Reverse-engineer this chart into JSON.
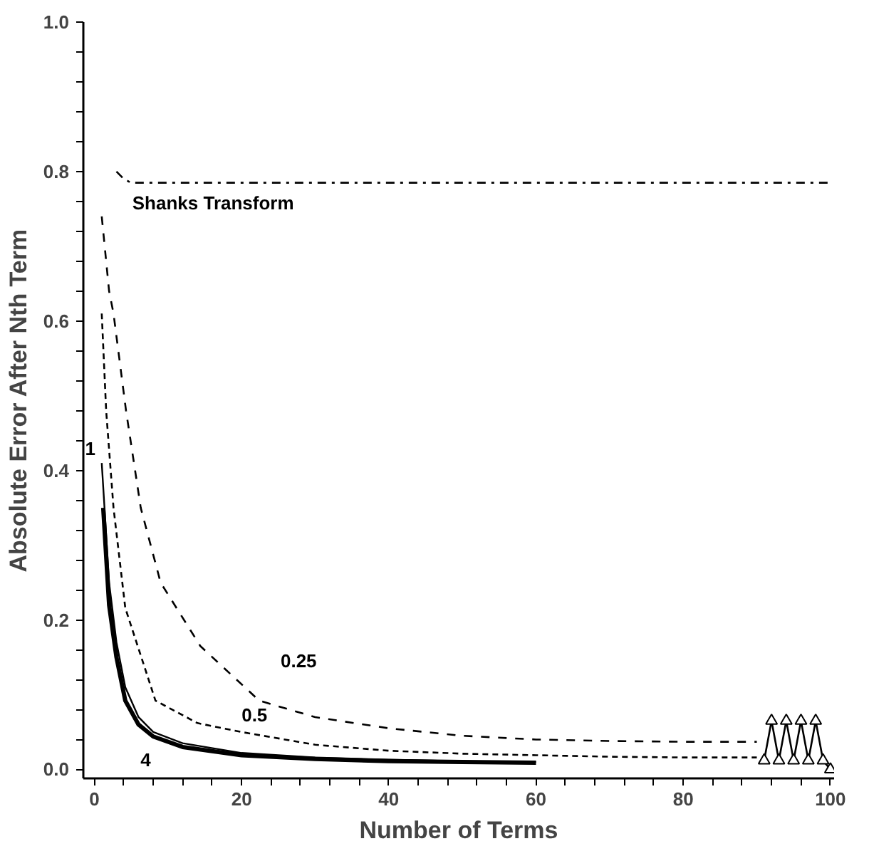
{
  "chart_data": {
    "type": "line",
    "xlabel": "Number of Terms",
    "ylabel": "Absolute Error After Nth Term",
    "xlim": [
      -1.5,
      100.5
    ],
    "ylim": [
      -0.012,
      1.0
    ],
    "xticks": [
      0,
      {
        "value": 4,
        "label": null
      },
      {
        "value": 8,
        "label": null
      },
      {
        "value": 12,
        "label": null
      },
      {
        "value": 16,
        "label": null
      },
      20,
      {
        "value": 24,
        "label": null
      },
      {
        "value": 28,
        "label": null
      },
      {
        "value": 32,
        "label": null
      },
      {
        "value": 36,
        "label": null
      },
      40,
      {
        "value": 44,
        "label": null
      },
      {
        "value": 48,
        "label": null
      },
      {
        "value": 52,
        "label": null
      },
      {
        "value": 56,
        "label": null
      },
      60,
      {
        "value": 64,
        "label": null
      },
      {
        "value": 68,
        "label": null
      },
      {
        "value": 72,
        "label": null
      },
      {
        "value": 76,
        "label": null
      },
      80,
      {
        "value": 84,
        "label": null
      },
      {
        "value": 88,
        "label": null
      },
      {
        "value": 92,
        "label": null
      },
      {
        "value": 96,
        "label": null
      },
      100
    ],
    "yticks": [
      {
        "value": 0,
        "label": "0.0"
      },
      {
        "value": 0.04,
        "label": null
      },
      {
        "value": 0.08,
        "label": null
      },
      {
        "value": 0.12,
        "label": null
      },
      {
        "value": 0.16,
        "label": null
      },
      0.2,
      {
        "value": 0.24,
        "label": null
      },
      {
        "value": 0.28,
        "label": null
      },
      {
        "value": 0.32,
        "label": null
      },
      {
        "value": 0.36,
        "label": null
      },
      0.4,
      {
        "value": 0.44,
        "label": null
      },
      {
        "value": 0.48,
        "label": null
      },
      {
        "value": 0.52,
        "label": null
      },
      {
        "value": 0.56,
        "label": null
      },
      0.6,
      {
        "value": 0.64,
        "label": null
      },
      {
        "value": 0.68,
        "label": null
      },
      {
        "value": 0.72,
        "label": null
      },
      {
        "value": 0.76,
        "label": null
      },
      0.8,
      {
        "value": 0.84,
        "label": null
      },
      {
        "value": 0.88,
        "label": null
      },
      {
        "value": 0.92,
        "label": null
      },
      {
        "value": 0.96,
        "label": null
      },
      {
        "value": 1.0,
        "label": "1.0"
      }
    ],
    "grid": false,
    "series": [
      {
        "name": "Shanks Transform",
        "color": "#000000",
        "line_style": "dashdot",
        "x": [
          3,
          4,
          5,
          10,
          20,
          40,
          60,
          80,
          100
        ],
        "values": [
          0.8,
          0.79,
          0.785,
          0.785,
          0.785,
          0.785,
          0.785,
          0.785,
          0.785
        ]
      },
      {
        "name": "0.25",
        "color": "#000000",
        "line_style": "dashed",
        "x": [
          1,
          2,
          2.6,
          4.3,
          6.3,
          9,
          14.4,
          22.4,
          30,
          40,
          50,
          60,
          70,
          80,
          90
        ],
        "values": [
          0.74,
          0.64,
          0.61,
          0.48,
          0.35,
          0.25,
          0.165,
          0.092,
          0.07,
          0.055,
          0.045,
          0.04,
          0.038,
          0.037,
          0.037
        ]
      },
      {
        "name": "0.5",
        "color": "#000000",
        "line_style": "dotted",
        "x": [
          1,
          1.6,
          2.6,
          4.2,
          8.3,
          14,
          20,
          30,
          40,
          50,
          60,
          70,
          80,
          90
        ],
        "values": [
          0.61,
          0.48,
          0.35,
          0.216,
          0.092,
          0.062,
          0.05,
          0.033,
          0.025,
          0.021,
          0.019,
          0.017,
          0.016,
          0.016
        ]
      },
      {
        "name": "1",
        "color": "#000000",
        "line_style": "solid",
        "x": [
          1,
          2,
          3,
          4.2,
          6,
          8,
          12,
          20,
          30,
          40,
          50,
          60
        ],
        "values": [
          0.41,
          0.25,
          0.17,
          0.11,
          0.07,
          0.05,
          0.035,
          0.022,
          0.016,
          0.013,
          0.011,
          0.01
        ]
      },
      {
        "name": "4",
        "color": "#000000",
        "line_style": "solid",
        "x": [
          1.2,
          2,
          3,
          4.2,
          6,
          8,
          12,
          20,
          30,
          40,
          50,
          60
        ],
        "values": [
          0.35,
          0.22,
          0.15,
          0.092,
          0.06,
          0.044,
          0.03,
          0.019,
          0.014,
          0.011,
          0.01,
          0.009
        ]
      },
      {
        "color": "#000000",
        "line_style": "solid",
        "marker": "triangle",
        "x": [
          91,
          92,
          93,
          94,
          95,
          96,
          97,
          98,
          99,
          100
        ],
        "values": [
          0.012,
          0.065,
          0.012,
          0.065,
          0.012,
          0.065,
          0.012,
          0.065,
          0.012,
          0.0
        ]
      }
    ]
  }
}
